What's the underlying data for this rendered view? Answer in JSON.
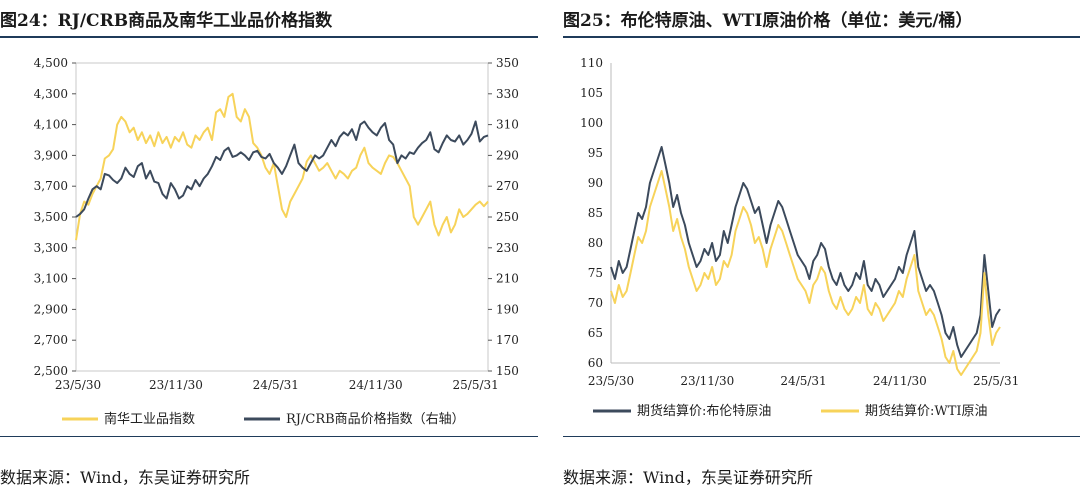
{
  "chart_data": [
    {
      "type": "line",
      "title": "图24：RJ/CRB商品及南华工业品价格指数",
      "source": "数据来源：Wind，东吴证券研究所",
      "x_tick_labels": [
        "23/5/30",
        "23/11/30",
        "24/5/31",
        "24/11/30",
        "25/5/31"
      ],
      "left_axis": {
        "min": 2500,
        "max": 4500,
        "step": 200,
        "tick_labels": [
          "2,500",
          "2,700",
          "2,900",
          "3,100",
          "3,300",
          "3,500",
          "3,700",
          "3,900",
          "4,100",
          "4,300",
          "4,500"
        ]
      },
      "right_axis": {
        "min": 150,
        "max": 350,
        "step": 20,
        "tick_labels": [
          "150",
          "170",
          "190",
          "210",
          "230",
          "250",
          "270",
          "290",
          "310",
          "330",
          "350"
        ]
      },
      "x_index_range": [
        0,
        100
      ],
      "series": [
        {
          "name": "南华工业品指数",
          "axis": "left",
          "color": "#f7d35a",
          "x": [
            0,
            1,
            2,
            3,
            4,
            5,
            6,
            7,
            8,
            9,
            10,
            11,
            12,
            13,
            14,
            15,
            16,
            17,
            18,
            19,
            20,
            21,
            22,
            23,
            24,
            25,
            26,
            27,
            28,
            29,
            30,
            31,
            32,
            33,
            34,
            35,
            36,
            37,
            38,
            39,
            40,
            41,
            42,
            43,
            44,
            45,
            46,
            47,
            48,
            49,
            50,
            51,
            52,
            53,
            54,
            55,
            56,
            57,
            58,
            59,
            60,
            61,
            62,
            63,
            64,
            65,
            66,
            67,
            68,
            69,
            70,
            71,
            72,
            73,
            74,
            75,
            76,
            77,
            78,
            79,
            80,
            81,
            82,
            83,
            84,
            85,
            86,
            87,
            88,
            89,
            90,
            91,
            92,
            93,
            94,
            95,
            96,
            97,
            98,
            99,
            100
          ],
          "values": [
            3350,
            3520,
            3600,
            3580,
            3650,
            3700,
            3750,
            3880,
            3900,
            3940,
            4100,
            4150,
            4120,
            4050,
            4080,
            4000,
            4050,
            3980,
            4030,
            3960,
            4050,
            3980,
            4020,
            3950,
            4020,
            3990,
            4050,
            3970,
            3950,
            4030,
            4000,
            4050,
            4080,
            4000,
            4180,
            4200,
            4150,
            4280,
            4300,
            4150,
            4120,
            4200,
            4150,
            3980,
            3950,
            3900,
            3820,
            3780,
            3850,
            3700,
            3550,
            3500,
            3600,
            3650,
            3700,
            3750,
            3860,
            3900,
            3850,
            3800,
            3820,
            3850,
            3800,
            3750,
            3800,
            3780,
            3750,
            3800,
            3820,
            3900,
            3950,
            3850,
            3820,
            3800,
            3780,
            3850,
            3900,
            3890,
            3850,
            3800,
            3750,
            3700,
            3500,
            3450,
            3500,
            3550,
            3600,
            3450,
            3380,
            3450,
            3500,
            3400,
            3450,
            3550,
            3500,
            3520,
            3550,
            3580,
            3600,
            3570,
            3600
          ]
        },
        {
          "name": "RJ/CRB商品价格指数（右轴）",
          "axis": "right",
          "color": "#3c4a5c",
          "x": [
            0,
            1,
            2,
            3,
            4,
            5,
            6,
            7,
            8,
            9,
            10,
            11,
            12,
            13,
            14,
            15,
            16,
            17,
            18,
            19,
            20,
            21,
            22,
            23,
            24,
            25,
            26,
            27,
            28,
            29,
            30,
            31,
            32,
            33,
            34,
            35,
            36,
            37,
            38,
            39,
            40,
            41,
            42,
            43,
            44,
            45,
            46,
            47,
            48,
            49,
            50,
            51,
            52,
            53,
            54,
            55,
            56,
            57,
            58,
            59,
            60,
            61,
            62,
            63,
            64,
            65,
            66,
            67,
            68,
            69,
            70,
            71,
            72,
            73,
            74,
            75,
            76,
            77,
            78,
            79,
            80,
            81,
            82,
            83,
            84,
            85,
            86,
            87,
            88,
            89,
            90,
            91,
            92,
            93,
            94,
            95,
            96,
            97,
            98,
            99,
            100
          ],
          "values": [
            250,
            252,
            255,
            262,
            268,
            270,
            268,
            278,
            277,
            274,
            272,
            275,
            282,
            278,
            276,
            283,
            285,
            275,
            280,
            273,
            272,
            265,
            262,
            272,
            268,
            262,
            264,
            270,
            268,
            274,
            270,
            275,
            278,
            283,
            289,
            287,
            293,
            295,
            289,
            290,
            292,
            290,
            287,
            292,
            293,
            289,
            288,
            291,
            285,
            282,
            278,
            283,
            290,
            297,
            285,
            282,
            280,
            285,
            290,
            288,
            290,
            295,
            300,
            296,
            302,
            305,
            303,
            307,
            300,
            310,
            312,
            308,
            305,
            303,
            308,
            311,
            300,
            297,
            285,
            290,
            288,
            292,
            291,
            295,
            298,
            300,
            305,
            294,
            292,
            298,
            303,
            300,
            299,
            303,
            297,
            300,
            304,
            312,
            299,
            302,
            303
          ]
        }
      ]
    },
    {
      "type": "line",
      "title": "图25：布伦特原油、WTI原油价格（单位：美元/桶）",
      "source": "数据来源：Wind，东吴证券研究所",
      "x_tick_labels": [
        "23/5/30",
        "23/11/30",
        "24/5/31",
        "24/11/30",
        "25/5/31"
      ],
      "y_axis": {
        "min": 60,
        "max": 110,
        "step": 5,
        "tick_labels": [
          "60",
          "65",
          "70",
          "75",
          "80",
          "85",
          "90",
          "95",
          "100",
          "105",
          "110"
        ]
      },
      "x_index_range": [
        0,
        100
      ],
      "series": [
        {
          "name": "期货结算价:布伦特原油",
          "color": "#3c4a5c",
          "x": [
            0,
            1,
            2,
            3,
            4,
            5,
            6,
            7,
            8,
            9,
            10,
            11,
            12,
            13,
            14,
            15,
            16,
            17,
            18,
            19,
            20,
            21,
            22,
            23,
            24,
            25,
            26,
            27,
            28,
            29,
            30,
            31,
            32,
            33,
            34,
            35,
            36,
            37,
            38,
            39,
            40,
            41,
            42,
            43,
            44,
            45,
            46,
            47,
            48,
            49,
            50,
            51,
            52,
            53,
            54,
            55,
            56,
            57,
            58,
            59,
            60,
            61,
            62,
            63,
            64,
            65,
            66,
            67,
            68,
            69,
            70,
            71,
            72,
            73,
            74,
            75,
            76,
            77,
            78,
            79,
            80,
            81,
            82,
            83,
            84,
            85,
            86,
            87,
            88,
            89,
            90,
            91,
            92,
            93,
            94,
            95,
            96,
            97,
            98,
            99,
            100
          ],
          "values": [
            76,
            74,
            77,
            75,
            76,
            79,
            82,
            85,
            84,
            86,
            90,
            92,
            94,
            96,
            93,
            90,
            86,
            88,
            85,
            83,
            80,
            78,
            76,
            77,
            79,
            78,
            80,
            77,
            78,
            82,
            80,
            83,
            86,
            88,
            90,
            89,
            87,
            85,
            86,
            83,
            80,
            83,
            85,
            87,
            86,
            84,
            82,
            80,
            78,
            77,
            76,
            74,
            77,
            78,
            80,
            79,
            76,
            74,
            73,
            75,
            73,
            72,
            73,
            75,
            74,
            77,
            73,
            72,
            74,
            73,
            71,
            72,
            73,
            74,
            76,
            75,
            78,
            80,
            82,
            76,
            74,
            72,
            73,
            72,
            70,
            68,
            65,
            64,
            66,
            63,
            61,
            62,
            63,
            64,
            65,
            68,
            78,
            72,
            66,
            68,
            69
          ]
        },
        {
          "name": "期货结算价:WTI原油",
          "color": "#f7d35a",
          "x": [
            0,
            1,
            2,
            3,
            4,
            5,
            6,
            7,
            8,
            9,
            10,
            11,
            12,
            13,
            14,
            15,
            16,
            17,
            18,
            19,
            20,
            21,
            22,
            23,
            24,
            25,
            26,
            27,
            28,
            29,
            30,
            31,
            32,
            33,
            34,
            35,
            36,
            37,
            38,
            39,
            40,
            41,
            42,
            43,
            44,
            45,
            46,
            47,
            48,
            49,
            50,
            51,
            52,
            53,
            54,
            55,
            56,
            57,
            58,
            59,
            60,
            61,
            62,
            63,
            64,
            65,
            66,
            67,
            68,
            69,
            70,
            71,
            72,
            73,
            74,
            75,
            76,
            77,
            78,
            79,
            80,
            81,
            82,
            83,
            84,
            85,
            86,
            87,
            88,
            89,
            90,
            91,
            92,
            93,
            94,
            95,
            96,
            97,
            98,
            99,
            100
          ],
          "values": [
            72,
            70,
            73,
            71,
            72,
            75,
            78,
            81,
            80,
            82,
            86,
            88,
            90,
            92,
            89,
            86,
            82,
            84,
            81,
            79,
            76,
            74,
            72,
            73,
            75,
            74,
            76,
            73,
            74,
            77,
            76,
            78,
            82,
            84,
            86,
            85,
            83,
            80,
            81,
            79,
            76,
            79,
            81,
            83,
            82,
            80,
            78,
            76,
            74,
            73,
            72,
            70,
            73,
            74,
            76,
            75,
            72,
            70,
            69,
            71,
            69,
            68,
            69,
            71,
            70,
            73,
            69,
            68,
            70,
            69,
            67,
            68,
            69,
            70,
            72,
            71,
            74,
            76,
            78,
            72,
            70,
            68,
            69,
            68,
            66,
            64,
            61,
            60,
            62,
            59,
            58,
            59,
            60,
            61,
            62,
            65,
            75,
            68,
            63,
            65,
            66
          ]
        }
      ]
    }
  ]
}
